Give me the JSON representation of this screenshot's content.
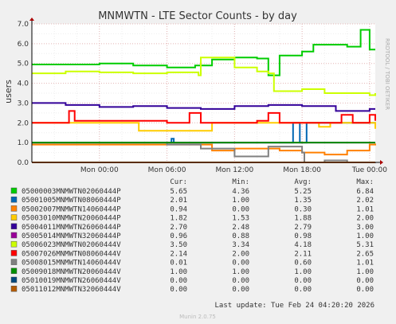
{
  "chart_data": {
    "type": "line",
    "title": "MNMWTN - LTE Sector Counts - by day",
    "ylabel": "users",
    "side_label": "RRDTOOL / TOBI OETIKER",
    "ylim": [
      0,
      7
    ],
    "yticks": [
      "0.0",
      "1.0",
      "2.0",
      "3.0",
      "4.0",
      "5.0",
      "6.0",
      "7.0"
    ],
    "x_range_hours": [
      0,
      30.5
    ],
    "xticks": [
      {
        "h": 6.0,
        "label": "Mon 00:00"
      },
      {
        "h": 12.0,
        "label": "Mon 06:00"
      },
      {
        "h": 18.0,
        "label": "Mon 12:00"
      },
      {
        "h": 24.0,
        "label": "Mon 18:00"
      },
      {
        "h": 30.0,
        "label": "Tue 00:00"
      }
    ],
    "legend_headers": {
      "cur": "Cur:",
      "min": "Min:",
      "avg": "Avg:",
      "max": "Max:"
    },
    "series": [
      {
        "name": "05000003MNMWTN02060444P",
        "color": "#00cc00",
        "cur": "5.65",
        "min": "4.36",
        "avg": "5.25",
        "max": "6.84",
        "points": [
          [
            0,
            4.95
          ],
          [
            3,
            4.95
          ],
          [
            6,
            5.0
          ],
          [
            9,
            4.9
          ],
          [
            12,
            4.8
          ],
          [
            14.5,
            4.9
          ],
          [
            16,
            5.2
          ],
          [
            18,
            5.3
          ],
          [
            20,
            5.25
          ],
          [
            21,
            4.4
          ],
          [
            22,
            5.4
          ],
          [
            24,
            5.6
          ],
          [
            25,
            5.95
          ],
          [
            28,
            5.85
          ],
          [
            29.2,
            6.7
          ],
          [
            30,
            5.7
          ],
          [
            31.3,
            5.7
          ],
          [
            32,
            5.6
          ]
        ]
      },
      {
        "name": "05001005MNMWTN08060444P",
        "color": "#0066b3",
        "cur": "2.01",
        "min": "1.00",
        "avg": "1.35",
        "max": "2.02",
        "points": [
          [
            0,
            1.0
          ],
          [
            12,
            1.0
          ],
          [
            12.4,
            1.2
          ],
          [
            12.6,
            1.0
          ],
          [
            23,
            1.0
          ],
          [
            23.2,
            2.0
          ],
          [
            23.6,
            2.0
          ],
          [
            23.8,
            1.0
          ],
          [
            24.2,
            1.0
          ],
          [
            24.4,
            2.0
          ],
          [
            26,
            2.0
          ],
          [
            30,
            2.0
          ],
          [
            32,
            2.0
          ]
        ]
      },
      {
        "name": "05002007MNMWTN14060444P",
        "color": "#ff8000",
        "cur": "0.94",
        "min": "0.00",
        "avg": "0.30",
        "max": "1.01",
        "points": [
          [
            0,
            0.9
          ],
          [
            12,
            0.9
          ],
          [
            16,
            0.6
          ],
          [
            18,
            0.7
          ],
          [
            22,
            0.6
          ],
          [
            24,
            0.5
          ],
          [
            26,
            0.4
          ],
          [
            28,
            0.6
          ],
          [
            30,
            0.9
          ],
          [
            32,
            0.95
          ]
        ]
      },
      {
        "name": "05003010MNMWTN20060444P",
        "color": "#ffcc00",
        "cur": "1.82",
        "min": "1.53",
        "avg": "1.88",
        "max": "2.00",
        "points": [
          [
            0,
            2.0
          ],
          [
            9,
            2.0
          ],
          [
            9.5,
            1.6
          ],
          [
            15,
            1.6
          ],
          [
            16,
            2.0
          ],
          [
            25,
            2.0
          ],
          [
            25.5,
            1.8
          ],
          [
            26.5,
            2.0
          ],
          [
            30,
            2.0
          ],
          [
            30.5,
            1.7
          ],
          [
            32,
            1.8
          ]
        ]
      },
      {
        "name": "05004011MNMWTN26060444P",
        "color": "#330099",
        "cur": "2.70",
        "min": "2.48",
        "avg": "2.79",
        "max": "3.00",
        "points": [
          [
            0,
            3.0
          ],
          [
            3,
            2.9
          ],
          [
            6,
            2.8
          ],
          [
            9,
            2.85
          ],
          [
            12,
            2.75
          ],
          [
            15,
            2.7
          ],
          [
            18,
            2.85
          ],
          [
            21,
            2.9
          ],
          [
            24,
            2.85
          ],
          [
            27,
            2.6
          ],
          [
            30,
            2.7
          ],
          [
            32,
            2.7
          ]
        ]
      },
      {
        "name": "05005014MNMWTN32060444P",
        "color": "#990099",
        "cur": "0.96",
        "min": "0.88",
        "avg": "0.98",
        "max": "1.00",
        "points": [
          [
            0,
            1.0
          ],
          [
            31,
            1.0
          ],
          [
            31.5,
            0.9
          ],
          [
            32,
            0.96
          ]
        ]
      },
      {
        "name": "05006023MNMWTN02060444V",
        "color": "#ccff00",
        "cur": "3.50",
        "min": "3.34",
        "avg": "4.18",
        "max": "5.31",
        "points": [
          [
            0,
            4.5
          ],
          [
            3,
            4.6
          ],
          [
            6,
            4.55
          ],
          [
            9,
            4.5
          ],
          [
            12,
            4.55
          ],
          [
            14.8,
            4.4
          ],
          [
            15,
            5.3
          ],
          [
            18,
            4.8
          ],
          [
            20,
            4.6
          ],
          [
            21,
            4.5
          ],
          [
            21.5,
            3.6
          ],
          [
            24,
            3.7
          ],
          [
            26,
            3.5
          ],
          [
            28,
            3.5
          ],
          [
            30,
            3.4
          ],
          [
            32,
            3.5
          ]
        ]
      },
      {
        "name": "05007026MNMWTN08060444V",
        "color": "#ff0000",
        "cur": "2.14",
        "min": "2.00",
        "avg": "2.11",
        "max": "2.65",
        "points": [
          [
            0,
            2.0
          ],
          [
            3,
            2.0
          ],
          [
            3.3,
            2.6
          ],
          [
            3.8,
            2.1
          ],
          [
            12,
            2.0
          ],
          [
            14,
            2.5
          ],
          [
            15,
            2.0
          ],
          [
            20,
            2.1
          ],
          [
            21,
            2.5
          ],
          [
            22,
            2.0
          ],
          [
            27,
            2.0
          ],
          [
            27.5,
            2.4
          ],
          [
            28.5,
            2.0
          ],
          [
            30,
            2.4
          ],
          [
            31,
            2.1
          ],
          [
            32,
            2.14
          ]
        ]
      },
      {
        "name": "05008015MNMWTN14060444V",
        "color": "#808080",
        "cur": "0.01",
        "min": "0.00",
        "avg": "0.60",
        "max": "1.01",
        "points": [
          [
            0,
            1.0
          ],
          [
            12,
            0.9
          ],
          [
            15,
            0.7
          ],
          [
            18,
            0.3
          ],
          [
            21,
            0.8
          ],
          [
            24,
            0.5
          ],
          [
            24.2,
            0.0
          ],
          [
            26,
            0.1
          ],
          [
            28,
            0.0
          ],
          [
            32,
            0.01
          ]
        ]
      },
      {
        "name": "05009018MNMWTN20060444V",
        "color": "#008f00",
        "cur": "1.00",
        "min": "1.00",
        "avg": "1.00",
        "max": "1.00",
        "points": [
          [
            0,
            1.0
          ],
          [
            32,
            1.0
          ]
        ]
      },
      {
        "name": "05010019MNMWTN26060444V",
        "color": "#00487d",
        "cur": "0.00",
        "min": "0.00",
        "avg": "0.00",
        "max": "0.00",
        "points": [
          [
            0,
            0.0
          ],
          [
            32,
            0.0
          ]
        ]
      },
      {
        "name": "05011012MNMWTN32060444V",
        "color": "#b35a00",
        "cur": "0.00",
        "min": "0.00",
        "avg": "0.00",
        "max": "0.00",
        "points": [
          [
            0,
            0.0
          ],
          [
            32,
            0.0
          ]
        ]
      }
    ]
  },
  "footer": {
    "last_update": "Last update: Tue Feb 24 04:20:20 2026",
    "version": "Munin 2.0.75"
  }
}
